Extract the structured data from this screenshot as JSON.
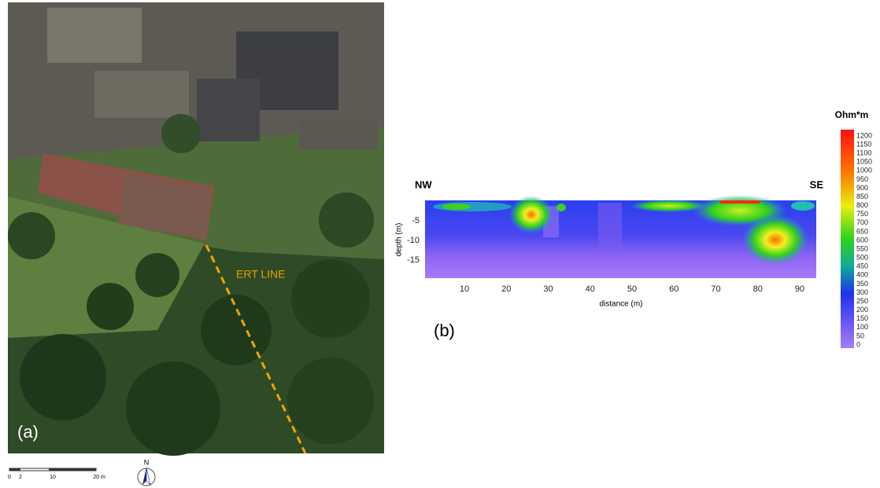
{
  "panel_a": {
    "label": "(a)",
    "annotation": "ERT LINE",
    "north": "N",
    "scale_labels": [
      "0",
      "2",
      "10",
      "20 m"
    ]
  },
  "panel_b": {
    "label": "(b)",
    "left_end": "NW",
    "right_end": "SE",
    "y_axis_label": "depth (m)",
    "x_axis_label": "distance (m)",
    "yticks": [
      -5,
      -10,
      -15
    ],
    "xticks": [
      10,
      20,
      30,
      40,
      50,
      60,
      70,
      80,
      90
    ]
  },
  "colorbar": {
    "title": "Ohm*m",
    "ticks": [
      1200,
      1150,
      1100,
      1050,
      1000,
      950,
      900,
      850,
      800,
      750,
      700,
      650,
      600,
      550,
      500,
      450,
      400,
      350,
      300,
      250,
      200,
      150,
      100,
      50,
      0
    ]
  }
}
